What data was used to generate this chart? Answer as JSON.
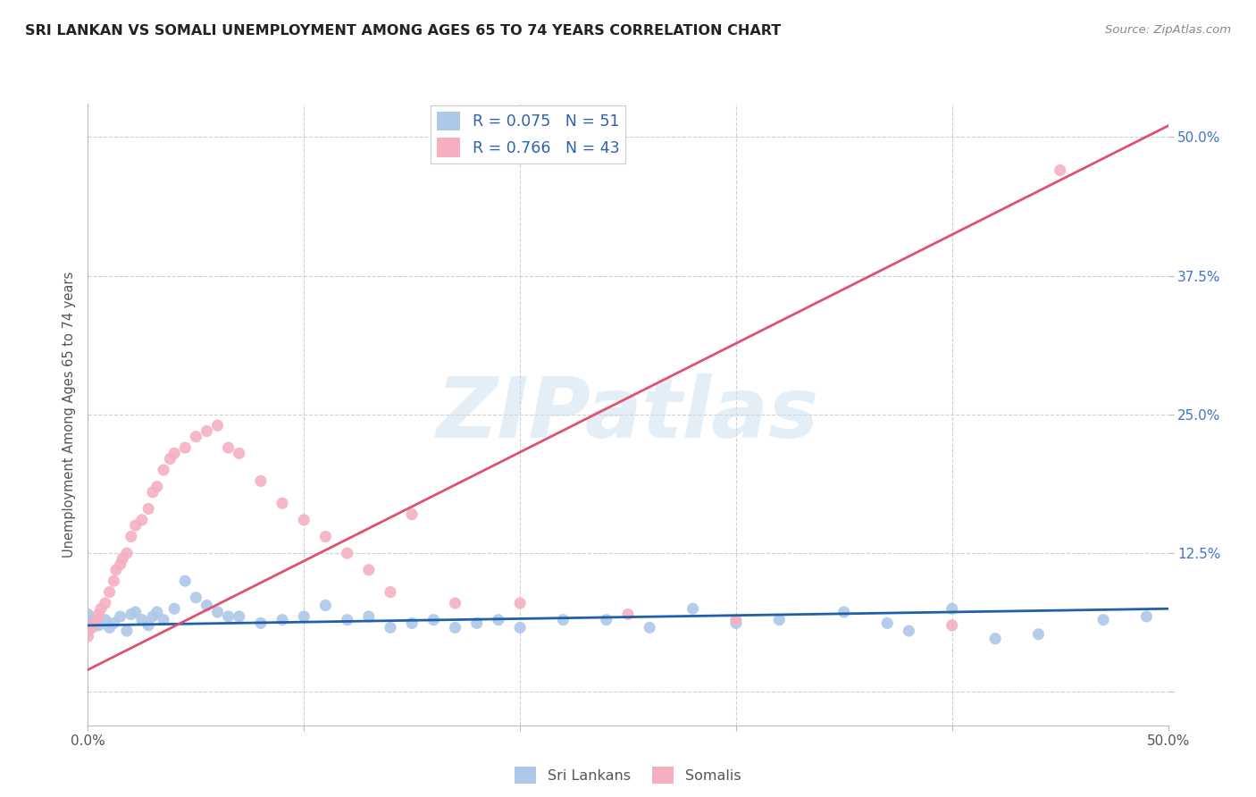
{
  "title": "SRI LANKAN VS SOMALI UNEMPLOYMENT AMONG AGES 65 TO 74 YEARS CORRELATION CHART",
  "source": "Source: ZipAtlas.com",
  "ylabel": "Unemployment Among Ages 65 to 74 years",
  "xlim": [
    0.0,
    0.5
  ],
  "ylim": [
    -0.03,
    0.53
  ],
  "y_ticks": [
    0.0,
    0.125,
    0.25,
    0.375,
    0.5
  ],
  "y_tick_labels": [
    "",
    "12.5%",
    "25.0%",
    "37.5%",
    "50.0%"
  ],
  "sri_lankan_color": "#adc8e8",
  "somali_color": "#f5afc0",
  "sri_lankan_line_color": "#2060a8",
  "somali_line_color": "#e05070",
  "sri_lankan_R": 0.075,
  "sri_lankan_N": 51,
  "somali_R": 0.766,
  "somali_N": 43,
  "watermark_text": "ZIPatlas",
  "background_color": "#ffffff",
  "grid_color": "#d0d0d0",
  "right_tick_color": "#4472c4",
  "title_color": "#222222",
  "source_color": "#888888",
  "legend_text_color": "#3060b0",
  "bottom_legend_color": "#555555",
  "sl_x": [
    0.0,
    0.0,
    0.0,
    0.0,
    0.005,
    0.008,
    0.01,
    0.012,
    0.015,
    0.018,
    0.02,
    0.022,
    0.025,
    0.028,
    0.03,
    0.032,
    0.035,
    0.04,
    0.045,
    0.05,
    0.055,
    0.06,
    0.065,
    0.07,
    0.08,
    0.09,
    0.1,
    0.11,
    0.12,
    0.13,
    0.14,
    0.15,
    0.16,
    0.17,
    0.18,
    0.19,
    0.2,
    0.22,
    0.24,
    0.26,
    0.28,
    0.3,
    0.32,
    0.35,
    0.37,
    0.38,
    0.4,
    0.42,
    0.44,
    0.47,
    0.49
  ],
  "sl_y": [
    0.055,
    0.06,
    0.065,
    0.07,
    0.06,
    0.065,
    0.058,
    0.062,
    0.068,
    0.055,
    0.07,
    0.072,
    0.065,
    0.06,
    0.068,
    0.072,
    0.065,
    0.075,
    0.1,
    0.085,
    0.078,
    0.072,
    0.068,
    0.068,
    0.062,
    0.065,
    0.068,
    0.078,
    0.065,
    0.068,
    0.058,
    0.062,
    0.065,
    0.058,
    0.062,
    0.065,
    0.058,
    0.065,
    0.065,
    0.058,
    0.075,
    0.062,
    0.065,
    0.072,
    0.062,
    0.055,
    0.075,
    0.048,
    0.052,
    0.065,
    0.068
  ],
  "so_x": [
    0.0,
    0.0,
    0.0,
    0.002,
    0.004,
    0.005,
    0.006,
    0.008,
    0.01,
    0.012,
    0.013,
    0.015,
    0.016,
    0.018,
    0.02,
    0.022,
    0.025,
    0.028,
    0.03,
    0.032,
    0.035,
    0.038,
    0.04,
    0.045,
    0.05,
    0.055,
    0.06,
    0.065,
    0.07,
    0.08,
    0.09,
    0.1,
    0.11,
    0.12,
    0.13,
    0.14,
    0.15,
    0.17,
    0.2,
    0.25,
    0.3,
    0.4,
    0.45
  ],
  "so_y": [
    0.05,
    0.055,
    0.06,
    0.058,
    0.065,
    0.07,
    0.075,
    0.08,
    0.09,
    0.1,
    0.11,
    0.115,
    0.12,
    0.125,
    0.14,
    0.15,
    0.155,
    0.165,
    0.18,
    0.185,
    0.2,
    0.21,
    0.215,
    0.22,
    0.23,
    0.235,
    0.24,
    0.22,
    0.215,
    0.19,
    0.17,
    0.155,
    0.14,
    0.125,
    0.11,
    0.09,
    0.16,
    0.08,
    0.08,
    0.07,
    0.065,
    0.06,
    0.47
  ],
  "sl_line_x": [
    0.0,
    0.5
  ],
  "sl_line_y": [
    0.06,
    0.075
  ],
  "so_line_x": [
    0.0,
    0.5
  ],
  "so_line_y": [
    0.02,
    0.51
  ]
}
